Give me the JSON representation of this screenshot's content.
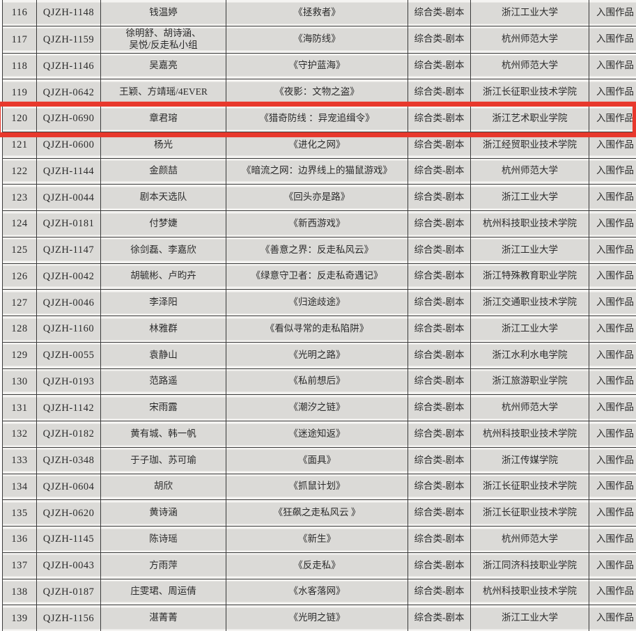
{
  "document": {
    "description_status_color": "#e8382c",
    "category_repeated": "综合类-剧本",
    "status_repeated": "入围作品"
  },
  "highlight": {
    "highlighted_row_num": "120",
    "border_color": "#e8382c"
  },
  "table": {
    "rows": [
      {
        "num": "116",
        "id": "QJZH-1148",
        "authors": "钱温婷",
        "title": "《拯救者》",
        "category": "综合类-剧本",
        "school": "浙江工业大学",
        "status": "入围作品",
        "highlighted": false
      },
      {
        "num": "117",
        "id": "QJZH-1159",
        "authors": "徐明舒、胡诗涵、\n吴悦/反走私小组",
        "title": "《海防线》",
        "category": "综合类-剧本",
        "school": "杭州师范大学",
        "status": "入围作品",
        "highlighted": false
      },
      {
        "num": "118",
        "id": "QJZH-1146",
        "authors": "吴嘉亮",
        "title": "《守护蓝海》",
        "category": "综合类-剧本",
        "school": "杭州师范大学",
        "status": "入围作品",
        "highlighted": false
      },
      {
        "num": "119",
        "id": "QJZH-0642",
        "authors": "王颖、方靖瑶/4EVER",
        "title": "《夜影：文物之盗》",
        "category": "综合类-剧本",
        "school": "浙江长征职业技术学院",
        "status": "入围作品",
        "highlighted": false
      },
      {
        "num": "120",
        "id": "QJZH-0690",
        "authors": "章君瑢",
        "title": "《猎奇防线 ：异宠追缉令》",
        "category": "综合类-剧本",
        "school": "浙江艺术职业学院",
        "status": "入围作品",
        "highlighted": true
      },
      {
        "num": "121",
        "id": "QJZH-0600",
        "authors": "杨光",
        "title": "《进化之网》",
        "category": "综合类-剧本",
        "school": "浙江经贸职业技术学院",
        "status": "入围作品",
        "highlighted": false
      },
      {
        "num": "122",
        "id": "QJZH-1144",
        "authors": "金颜喆",
        "title": "《暗流之网：边界线上的猫鼠游戏》",
        "category": "综合类-剧本",
        "school": "杭州师范大学",
        "status": "入围作品",
        "highlighted": false
      },
      {
        "num": "123",
        "id": "QJZH-0044",
        "authors": "剧本天选队",
        "title": "《回头亦是路》",
        "category": "综合类-剧本",
        "school": "浙江工业大学",
        "status": "入围作品",
        "highlighted": false
      },
      {
        "num": "124",
        "id": "QJZH-0181",
        "authors": "付梦婕",
        "title": "《新西游戏》",
        "category": "综合类-剧本",
        "school": "杭州科技职业技术学院",
        "status": "入围作品",
        "highlighted": false
      },
      {
        "num": "125",
        "id": "QJZH-1147",
        "authors": "徐剑磊、李嘉欣",
        "title": "《善意之界：反走私风云》",
        "category": "综合类-剧本",
        "school": "浙江工业大学",
        "status": "入围作品",
        "highlighted": false
      },
      {
        "num": "126",
        "id": "QJZH-0042",
        "authors": "胡毓彬、卢昀卉",
        "title": "《绿意守卫者：反走私奇遇记》",
        "category": "综合类-剧本",
        "school": "浙江特殊教育职业学院",
        "status": "入围作品",
        "highlighted": false
      },
      {
        "num": "127",
        "id": "QJZH-0046",
        "authors": "李泽阳",
        "title": "《归途歧途》",
        "category": "综合类-剧本",
        "school": "浙江交通职业技术学院",
        "status": "入围作品",
        "highlighted": false
      },
      {
        "num": "128",
        "id": "QJZH-1160",
        "authors": "林雅群",
        "title": "《看似寻常的走私陷阱》",
        "category": "综合类-剧本",
        "school": "浙江工业大学",
        "status": "入围作品",
        "highlighted": false
      },
      {
        "num": "129",
        "id": "QJZH-0055",
        "authors": "袁静山",
        "title": "《光明之路》",
        "category": "综合类-剧本",
        "school": "浙江水利水电学院",
        "status": "入围作品",
        "highlighted": false
      },
      {
        "num": "130",
        "id": "QJZH-0193",
        "authors": "范路遥",
        "title": "《私前想后》",
        "category": "综合类-剧本",
        "school": "浙江旅游职业学院",
        "status": "入围作品",
        "highlighted": false
      },
      {
        "num": "131",
        "id": "QJZH-1142",
        "authors": "宋雨露",
        "title": "《潮汐之链》",
        "category": "综合类-剧本",
        "school": "杭州师范大学",
        "status": "入围作品",
        "highlighted": false
      },
      {
        "num": "132",
        "id": "QJZH-0182",
        "authors": "黄有城、韩一帆",
        "title": "《迷途知返》",
        "category": "综合类-剧本",
        "school": "杭州科技职业技术学院",
        "status": "入围作品",
        "highlighted": false
      },
      {
        "num": "133",
        "id": "QJZH-0348",
        "authors": "于子珈、苏可瑜",
        "title": "《面具》",
        "category": "综合类-剧本",
        "school": "浙江传媒学院",
        "status": "入围作品",
        "highlighted": false
      },
      {
        "num": "134",
        "id": "QJZH-0604",
        "authors": "胡欣",
        "title": "《抓鼠计划》",
        "category": "综合类-剧本",
        "school": "浙江长征职业技术学院",
        "status": "入围作品",
        "highlighted": false
      },
      {
        "num": "135",
        "id": "QJZH-0620",
        "authors": "黄诗涵",
        "title": "《狂飙之走私风云 》",
        "category": "综合类-剧本",
        "school": "浙江长征职业技术学院",
        "status": "入围作品",
        "highlighted": false
      },
      {
        "num": "136",
        "id": "QJZH-1145",
        "authors": "陈诗瑶",
        "title": "《新生》",
        "category": "综合类-剧本",
        "school": "杭州师范大学",
        "status": "入围作品",
        "highlighted": false
      },
      {
        "num": "137",
        "id": "QJZH-0043",
        "authors": "方雨萍",
        "title": "《反走私》",
        "category": "综合类-剧本",
        "school": "浙江同济科技职业学院",
        "status": "入围作品",
        "highlighted": false
      },
      {
        "num": "138",
        "id": "QJZH-0187",
        "authors": "庄雯珺、周运倩",
        "title": "《水客落网》",
        "category": "综合类-剧本",
        "school": "杭州科技职业技术学院",
        "status": "入围作品",
        "highlighted": false
      },
      {
        "num": "139",
        "id": "QJZH-1156",
        "authors": "湛菁菁",
        "title": "《光明之链》",
        "category": "综合类-剧本",
        "school": "浙江工业大学",
        "status": "入围作品",
        "highlighted": false
      }
    ]
  }
}
